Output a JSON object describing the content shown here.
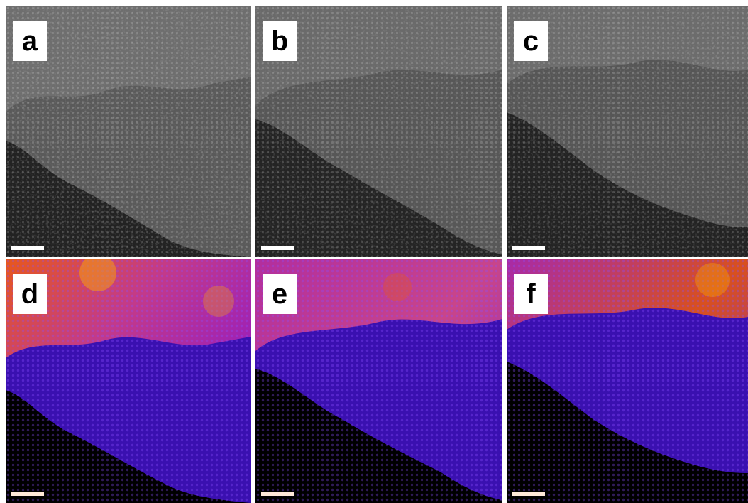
{
  "panels": [
    {
      "label": "a",
      "style": "grayscale"
    },
    {
      "label": "b",
      "style": "grayscale"
    },
    {
      "label": "c",
      "style": "grayscale"
    },
    {
      "label": "d",
      "style": "false-color-heat"
    },
    {
      "label": "e",
      "style": "false-color-heat"
    },
    {
      "label": "f",
      "style": "false-color-heat"
    }
  ],
  "colors": {
    "gray_vacuum": "#222222",
    "gray_flake": "#5a5a5a",
    "gray_bright": "#8c8c8c",
    "heat_vacuum": "#000000",
    "heat_flake": "#3a10b0",
    "heat_mid": "#9b1fb8",
    "heat_hot": "#e8581a",
    "heat_peak": "#ffb000"
  }
}
